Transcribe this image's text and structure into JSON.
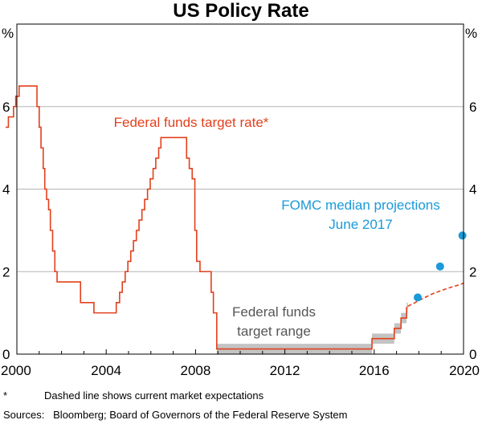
{
  "chart_data": {
    "type": "line",
    "title": "US Policy Rate",
    "ylabel_left": "%",
    "ylabel_right": "%",
    "xlim": [
      2000,
      2020
    ],
    "ylim": [
      0,
      8
    ],
    "x_ticks": [
      2000,
      2004,
      2008,
      2012,
      2016,
      2020
    ],
    "y_ticks": [
      0,
      2,
      4,
      6
    ],
    "colors": {
      "target_rate": "#e2401c",
      "projections": "#1a9ad8",
      "range_fill": "#c3c3c3",
      "grid": "#b5b5b5",
      "range_label": "#555555"
    },
    "series": [
      {
        "name": "Federal funds target rate",
        "label": "Federal funds target rate*",
        "style": "step",
        "x": [
          1999.5,
          1999.62,
          1999.85,
          1999.95,
          2000.1,
          2000.35,
          2000.75,
          2000.9,
          2001.0,
          2001.08,
          2001.18,
          2001.25,
          2001.33,
          2001.42,
          2001.5,
          2001.6,
          2001.7,
          2001.8,
          2001.88,
          2001.96,
          2002.85,
          2003.45,
          2004.45,
          2004.6,
          2004.72,
          2004.85,
          2004.97,
          2005.1,
          2005.22,
          2005.35,
          2005.47,
          2005.6,
          2005.72,
          2005.85,
          2005.97,
          2006.1,
          2006.22,
          2006.35,
          2006.45,
          2007.6,
          2007.72,
          2007.85,
          2007.97,
          2008.05,
          2008.2,
          2008.3,
          2008.7,
          2008.8,
          2008.95,
          2015.9,
          2016.9,
          2017.2,
          2017.45
        ],
        "y": [
          5.5,
          5.75,
          6.0,
          6.25,
          6.5,
          6.5,
          6.5,
          6.0,
          5.5,
          5.0,
          4.5,
          4.0,
          3.75,
          3.5,
          3.0,
          2.5,
          2.0,
          1.75,
          1.75,
          1.75,
          1.25,
          1.0,
          1.25,
          1.5,
          1.75,
          2.0,
          2.25,
          2.5,
          2.75,
          3.0,
          3.25,
          3.5,
          3.75,
          4.0,
          4.25,
          4.5,
          4.75,
          5.0,
          5.25,
          4.75,
          4.5,
          4.25,
          3.0,
          2.25,
          2.0,
          2.0,
          1.5,
          1.0,
          0.125,
          0.375,
          0.625,
          0.875,
          1.125
        ],
        "x_end": 2017.5
      },
      {
        "name": "Federal funds target range",
        "label": [
          "Federal funds",
          "target range"
        ],
        "style": "band",
        "x": [
          2008.95,
          2015.9,
          2016.9,
          2017.2,
          2017.45,
          2017.5
        ],
        "lower": [
          0.0,
          0.25,
          0.5,
          0.75,
          1.0,
          1.0
        ],
        "upper": [
          0.25,
          0.5,
          0.75,
          1.0,
          1.25,
          1.25
        ]
      },
      {
        "name": "Market expectations",
        "style": "dashed",
        "x": [
          2017.5,
          2017.8,
          2018.0,
          2018.3,
          2018.6,
          2018.9,
          2019.2,
          2019.5,
          2019.8,
          2020.0
        ],
        "y": [
          1.16,
          1.24,
          1.3,
          1.38,
          1.46,
          1.52,
          1.58,
          1.63,
          1.68,
          1.72
        ]
      },
      {
        "name": "FOMC median projections",
        "label": [
          "FOMC median projections",
          "June 2017"
        ],
        "style": "points",
        "x": [
          2017.95,
          2018.95,
          2019.95
        ],
        "y": [
          1.375,
          2.125,
          2.875
        ]
      }
    ],
    "footnote_marker": "*",
    "footnote": "Dashed line shows current market expectations",
    "sources": "Sources:   Bloomberg; Board of Governors of the Federal Reserve System"
  }
}
